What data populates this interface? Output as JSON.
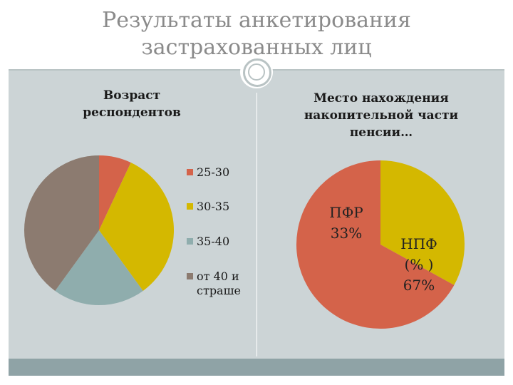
{
  "slide": {
    "title": "Результаты анкетирования застрахованных лиц"
  },
  "colors": {
    "orange": "#d4634a",
    "yellow": "#d4b800",
    "teal": "#8fadad",
    "taupe": "#8c7b70",
    "background": "#ccd4d6",
    "footer": "#8fa3a6"
  },
  "chart_data": [
    {
      "type": "pie",
      "title": "Возраст респондентов",
      "legend_position": "right",
      "categories": [
        "25-30",
        "30-35",
        "35-40",
        "от 40 и страше"
      ],
      "values": [
        7,
        33,
        20,
        40
      ],
      "unit": "%",
      "colors": [
        "#d4634a",
        "#d4b800",
        "#8fadad",
        "#8c7b70"
      ]
    },
    {
      "type": "pie",
      "title": "Место нахождения накопительной части пенсии…",
      "categories": [
        "ПФР",
        "НПФ"
      ],
      "values": [
        33,
        67
      ],
      "unit": "%",
      "data_labels": [
        [
          "ПФР",
          "33%"
        ],
        [
          "НПФ",
          "(% )",
          "67%"
        ]
      ],
      "colors": [
        "#d4b800",
        "#d4634a"
      ]
    }
  ]
}
